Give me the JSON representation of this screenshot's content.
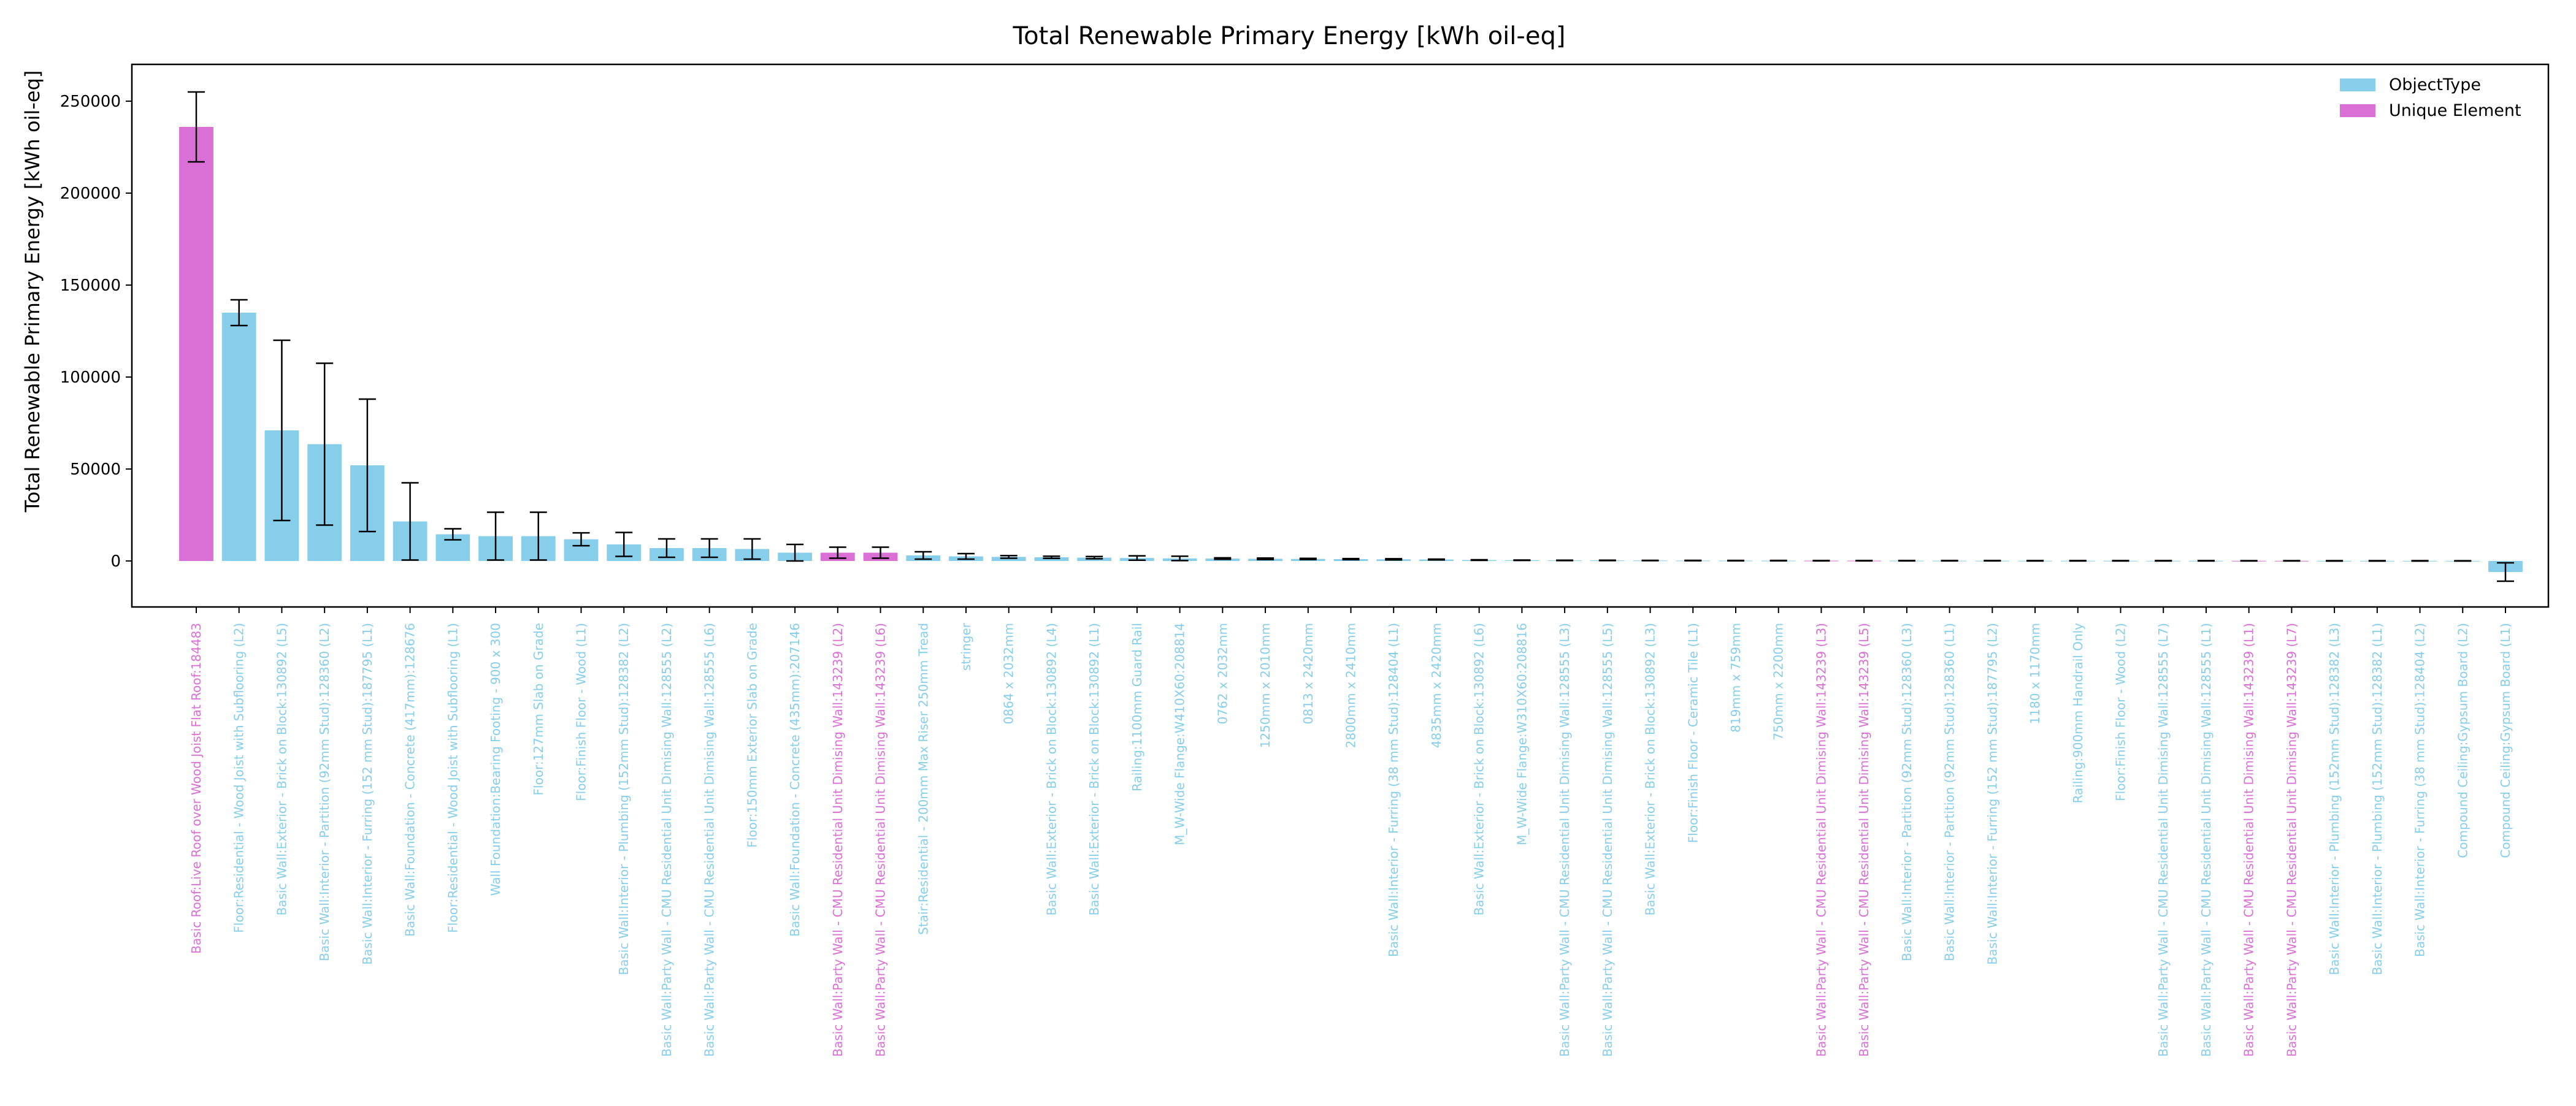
{
  "chart_data": {
    "type": "bar",
    "title": "Total Renewable Primary Energy [kWh oil-eq]",
    "xlabel": "",
    "ylabel": "Total Renewable Primary Energy [kWh oil-eq]",
    "ylim": [
      -25000,
      270000
    ],
    "yticks": [
      0,
      50000,
      100000,
      150000,
      200000,
      250000
    ],
    "grid": false,
    "legend_position": "top-right",
    "colors": {
      "ObjectType": "#87ceeb",
      "Unique Element": "#da70d6",
      "axis": "#000000",
      "errorbar": "#000000"
    },
    "legend": [
      {
        "label": "ObjectType",
        "group": "ObjectType"
      },
      {
        "label": "Unique Element",
        "group": "Unique Element"
      }
    ],
    "categories": [
      "Basic Roof:Live Roof over Wood Joist Flat Roof:184483",
      "Floor:Residential - Wood Joist with Subflooring (L2)",
      "Basic Wall:Exterior - Brick on Block:130892 (L5)",
      "Basic Wall:Interior - Partition (92mm Stud):128360 (L2)",
      "Basic Wall:Interior - Furring (152 mm Stud):187795 (L1)",
      "Basic Wall:Foundation - Concrete (417mm):128676",
      "Floor:Residential - Wood Joist with Subflooring (L1)",
      "Wall Foundation:Bearing Footing - 900 x 300",
      "Floor:127mm Slab on Grade",
      "Floor:Finish Floor - Wood (L1)",
      "Basic Wall:Interior - Plumbing (152mm Stud):128382 (L2)",
      "Basic Wall:Party Wall - CMU Residential Unit Dimising Wall:128555 (L2)",
      "Basic Wall:Party Wall - CMU Residential Unit Dimising Wall:128555 (L6)",
      "Floor:150mm Exterior Slab on Grade",
      "Basic Wall:Foundation - Concrete (435mm):207146",
      "Basic Wall:Party Wall - CMU Residential Unit Dimising Wall:143239 (L2)",
      "Basic Wall:Party Wall - CMU Residential Unit Dimising Wall:143239 (L6)",
      "Stair:Residential - 200mm Max Riser 250mm Tread",
      "stringer",
      "0864 x 2032mm",
      "Basic Wall:Exterior - Brick on Block:130892 (L4)",
      "Basic Wall:Exterior - Brick on Block:130892 (L1)",
      "Railing:1100mm Guard Rail",
      "M_W-Wide Flange:W410X60:208814",
      "0762 x 2032mm",
      "1250mm x 2010mm",
      "0813 x 2420mm",
      "2800mm x 2410mm",
      "Basic Wall:Interior - Furring (38 mm Stud):128404 (L1)",
      "4835mm x 2420mm",
      "Basic Wall:Exterior - Brick on Block:130892 (L6)",
      "M_W-Wide Flange:W310X60:208816",
      "Basic Wall:Party Wall - CMU Residential Unit Dimising Wall:128555 (L3)",
      "Basic Wall:Party Wall - CMU Residential Unit Dimising Wall:128555 (L5)",
      "Basic Wall:Exterior - Brick on Block:130892 (L3)",
      "Floor:Finish Floor - Ceramic Tile (L1)",
      "819mm x 759mm",
      "750mm x 2200mm",
      "Basic Wall:Party Wall - CMU Residential Unit Dimising Wall:143239 (L3)",
      "Basic Wall:Party Wall - CMU Residential Unit Dimising Wall:143239 (L5)",
      "Basic Wall:Interior - Partition (92mm Stud):128360 (L3)",
      "Basic Wall:Interior - Partition (92mm Stud):128360 (L1)",
      "Basic Wall:Interior - Furring (152 mm Stud):187795 (L2)",
      "1180 x 1170mm",
      "Railing:900mm Handrail Only",
      "Floor:Finish Floor - Wood (L2)",
      "Basic Wall:Party Wall - CMU Residential Unit Dimising Wall:128555 (L7)",
      "Basic Wall:Party Wall - CMU Residential Unit Dimising Wall:128555 (L1)",
      "Basic Wall:Party Wall - CMU Residential Unit Dimising Wall:143239 (L1)",
      "Basic Wall:Party Wall - CMU Residential Unit Dimising Wall:143239 (L7)",
      "Basic Wall:Interior - Plumbing (152mm Stud):128382 (L3)",
      "Basic Wall:Interior - Plumbing (152mm Stud):128382 (L1)",
      "Basic Wall:Interior - Furring (38 mm Stud):128404 (L2)",
      "Compound Ceiling:Gypsum Board (L2)",
      "Compound Ceiling:Gypsum Board (L1)"
    ],
    "groups": [
      "Unique Element",
      "ObjectType",
      "ObjectType",
      "ObjectType",
      "ObjectType",
      "ObjectType",
      "ObjectType",
      "ObjectType",
      "ObjectType",
      "ObjectType",
      "ObjectType",
      "ObjectType",
      "ObjectType",
      "ObjectType",
      "ObjectType",
      "Unique Element",
      "Unique Element",
      "ObjectType",
      "ObjectType",
      "ObjectType",
      "ObjectType",
      "ObjectType",
      "ObjectType",
      "ObjectType",
      "ObjectType",
      "ObjectType",
      "ObjectType",
      "ObjectType",
      "ObjectType",
      "ObjectType",
      "ObjectType",
      "ObjectType",
      "ObjectType",
      "ObjectType",
      "ObjectType",
      "ObjectType",
      "ObjectType",
      "ObjectType",
      "Unique Element",
      "Unique Element",
      "ObjectType",
      "ObjectType",
      "ObjectType",
      "ObjectType",
      "ObjectType",
      "ObjectType",
      "ObjectType",
      "ObjectType",
      "Unique Element",
      "Unique Element",
      "ObjectType",
      "ObjectType",
      "ObjectType",
      "ObjectType",
      "ObjectType"
    ],
    "values": [
      236000,
      135000,
      71000,
      63500,
      52000,
      21500,
      14500,
      13500,
      13500,
      11800,
      9000,
      7000,
      7000,
      6500,
      4500,
      4500,
      4500,
      3000,
      2500,
      2200,
      2000,
      1800,
      1600,
      1400,
      1300,
      1200,
      1100,
      1000,
      900,
      800,
      500,
      400,
      300,
      300,
      250,
      220,
      200,
      180,
      160,
      160,
      150,
      140,
      130,
      120,
      110,
      100,
      90,
      90,
      80,
      80,
      70,
      60,
      50,
      40,
      -6000
    ],
    "errors": [
      19000,
      7000,
      49000,
      44000,
      36000,
      21000,
      3000,
      13000,
      13000,
      3500,
      6500,
      5000,
      5000,
      5500,
      4500,
      3000,
      3000,
      2000,
      1500,
      700,
      600,
      600,
      1200,
      1200,
      400,
      400,
      300,
      300,
      300,
      200,
      150,
      100,
      100,
      100,
      100,
      100,
      100,
      100,
      100,
      100,
      100,
      100,
      100,
      100,
      100,
      100,
      100,
      100,
      100,
      100,
      100,
      100,
      100,
      100,
      5000
    ]
  }
}
